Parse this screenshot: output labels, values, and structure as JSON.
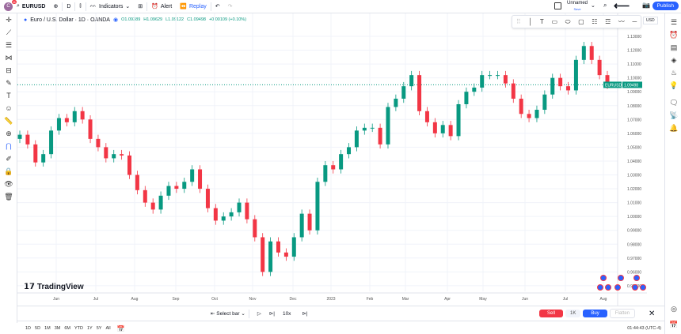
{
  "topbar": {
    "avatar_initial": "C",
    "notifications": "11",
    "symbol": "EURUSD",
    "interval": "D",
    "indicators": "Indicators",
    "alert": "Alert",
    "replay": "Replay",
    "layout_name": "Unnamed",
    "layout_status": "Save",
    "publish": "Publish"
  },
  "legend": {
    "title": "Euro / U.S. Dollar · 1D · OANDA",
    "o": "O1.09389",
    "h": "H1.09629",
    "l": "L1.09122",
    "c": "C1.09498",
    "change": "+0.00109 (+0.10%)"
  },
  "currency": "USD",
  "watermark": "TradingView",
  "price_label": {
    "symbol": "EURUSD",
    "value": "1.09498"
  },
  "replay_bar": {
    "select_bar": "Select bar",
    "speed": "10x",
    "sell": "Sell",
    "qty": "1K",
    "buy": "Buy",
    "flatten": "Flatten"
  },
  "bottom": {
    "ranges": [
      "1D",
      "5D",
      "1M",
      "3M",
      "6M",
      "YTD",
      "1Y",
      "5Y",
      "All"
    ],
    "clock": "01:44:43 (UTC-4)"
  },
  "colors": {
    "up": "#089981",
    "down": "#f23645",
    "accent": "#2962ff"
  },
  "chart_data": {
    "type": "candlestick",
    "symbol": "EURUSD",
    "ylim": [
      0.945,
      1.135
    ],
    "y_ticks": [
      "1.13000",
      "1.12000",
      "1.11000",
      "1.10000",
      "1.09000",
      "1.08000",
      "1.07000",
      "1.06000",
      "1.05000",
      "1.04000",
      "1.03000",
      "1.02000",
      "1.01000",
      "1.00000",
      "0.99000",
      "0.98000",
      "0.97000",
      "0.96000",
      "0.95000"
    ],
    "x_ticks": [
      "Jun",
      "Jul",
      "Aug",
      "Sep",
      "Oct",
      "Nov",
      "Dec",
      "2023",
      "Feb",
      "Mar",
      "Apr",
      "May",
      "Jun",
      "Jul",
      "Aug"
    ],
    "date_range": [
      "2022-05-13",
      "2023-08-04"
    ],
    "closes": [
      1.059,
      1.052,
      1.039,
      1.045,
      1.062,
      1.071,
      1.068,
      1.076,
      1.07,
      1.056,
      1.05,
      1.042,
      1.045,
      1.044,
      1.03,
      1.019,
      1.01,
      1.005,
      1.015,
      1.022,
      1.02,
      1.025,
      1.034,
      1.02,
      1.006,
      0.997,
      1.0,
      1.003,
      1.01,
      0.998,
      0.985,
      0.96,
      0.982,
      0.974,
      0.971,
      0.985,
      1.002,
      0.99,
      1.025,
      1.037,
      1.034,
      1.045,
      1.05,
      1.062,
      1.064,
      1.064,
      1.052,
      1.079,
      1.085,
      1.094,
      1.102,
      1.076,
      1.068,
      1.06,
      1.066,
      1.058,
      1.081,
      1.09,
      1.093,
      1.102,
      1.102,
      1.102,
      1.096,
      1.085,
      1.074,
      1.071,
      1.077,
      1.088,
      1.1,
      1.094,
      1.091,
      1.113,
      1.123,
      1.113,
      1.102,
      1.095
    ]
  }
}
